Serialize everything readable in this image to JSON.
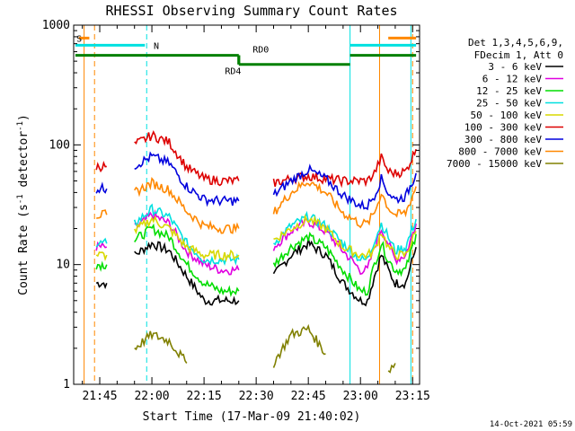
{
  "chart_data": {
    "type": "line",
    "title": "RHESSI Observing Summary Count Rates",
    "xlabel": "Start Time (17-Mar-09 21:40:02)",
    "ylabel_main": "Count Rate (s",
    "ylabel_sup1": "-1",
    "ylabel_mid": " detector",
    "ylabel_sup2": "-1",
    "ylabel_end": ")",
    "yscale": "log",
    "xlim": [
      -2.5,
      97
    ],
    "ylim": [
      1,
      1000
    ],
    "x_ticks": [
      {
        "value": 5,
        "label": "21:45"
      },
      {
        "value": 20,
        "label": "22:00"
      },
      {
        "value": 35,
        "label": "22:15"
      },
      {
        "value": 50,
        "label": "22:30"
      },
      {
        "value": 65,
        "label": "22:45"
      },
      {
        "value": 80,
        "label": "23:00"
      },
      {
        "value": 95,
        "label": "23:15"
      }
    ],
    "y_ticks": [
      {
        "value": 1,
        "label": "1"
      },
      {
        "value": 10,
        "label": "10"
      },
      {
        "value": 100,
        "label": "100"
      },
      {
        "value": 1000,
        "label": "1000"
      }
    ],
    "legend_header": [
      "Det 1,3,4,5,6,9,",
      "FDecim 1, Att 0"
    ],
    "x_minutes": [
      4,
      7,
      10,
      15,
      20,
      25,
      30,
      35,
      40,
      45,
      50,
      55,
      60,
      65,
      70,
      75,
      80,
      82,
      84,
      86,
      88,
      90,
      93,
      96
    ],
    "series": [
      {
        "name": "3 - 6 keV",
        "color": "#000000",
        "values": [
          7,
          7,
          null,
          12,
          15,
          13,
          8,
          5,
          5,
          5,
          null,
          8,
          12,
          15,
          12,
          7,
          5,
          5,
          8,
          12,
          9,
          7,
          7,
          14
        ]
      },
      {
        "name": "6 - 12 keV",
        "color": "#e000e0",
        "values": [
          14,
          14,
          null,
          20,
          26,
          22,
          13,
          10,
          9,
          9,
          null,
          14,
          19,
          23,
          19,
          13,
          9,
          9,
          14,
          20,
          15,
          11,
          12,
          22
        ]
      },
      {
        "name": "12 - 25 keV",
        "color": "#00dd00",
        "values": [
          10,
          10,
          null,
          16,
          20,
          17,
          10,
          7,
          6,
          6,
          null,
          10,
          14,
          17,
          14,
          9,
          6,
          6,
          10,
          15,
          11,
          9,
          9,
          18
        ]
      },
      {
        "name": "25 - 50 keV",
        "color": "#00e0e0",
        "values": [
          15,
          15,
          null,
          22,
          29,
          25,
          15,
          11,
          11,
          11,
          null,
          15,
          21,
          25,
          21,
          15,
          11,
          11,
          16,
          22,
          17,
          13,
          14,
          24
        ]
      },
      {
        "name": "50 - 100 keV",
        "color": "#d8d800",
        "values": [
          12,
          12,
          null,
          19,
          24,
          20,
          14,
          12,
          12,
          12,
          null,
          16,
          20,
          24,
          20,
          14,
          12,
          12,
          13,
          19,
          14,
          12,
          12,
          19
        ]
      },
      {
        "name": "100 - 300 keV",
        "color": "#dd0000",
        "values": [
          66,
          66,
          null,
          100,
          120,
          105,
          65,
          52,
          50,
          50,
          null,
          48,
          52,
          55,
          52,
          50,
          50,
          50,
          58,
          78,
          60,
          58,
          60,
          92
        ]
      },
      {
        "name": "300 - 800 keV",
        "color": "#0000dd",
        "values": [
          43,
          43,
          null,
          67,
          80,
          70,
          45,
          35,
          34,
          34,
          null,
          38,
          50,
          62,
          52,
          38,
          31,
          31,
          38,
          52,
          40,
          35,
          37,
          58
        ]
      },
      {
        "name": "800 - 7000 keV",
        "color": "#ff8800",
        "values": [
          26,
          26,
          null,
          40,
          48,
          42,
          28,
          21,
          20,
          20,
          null,
          27,
          40,
          50,
          40,
          27,
          22,
          22,
          27,
          40,
          30,
          26,
          27,
          45
        ]
      },
      {
        "name": "7000 - 15000 keV",
        "color": "#808000",
        "values": [
          null,
          null,
          null,
          2,
          2.6,
          2.3,
          1.5,
          null,
          null,
          null,
          null,
          1.5,
          2.6,
          2.9,
          1.8,
          null,
          null,
          null,
          null,
          null,
          1.3,
          1.5,
          null,
          null
        ]
      }
    ],
    "flags": [
      {
        "label": "RD0",
        "color": "#008000",
        "segments": [
          [
            -2,
            45
          ],
          [
            77,
            96
          ]
        ],
        "level": 560
      },
      {
        "label": "RD4",
        "color": "#008000",
        "segments": [
          [
            45,
            77
          ]
        ],
        "level": 470
      },
      {
        "label": "N",
        "color": "#00e0e0",
        "segments": [
          [
            -2,
            18
          ],
          [
            77,
            96
          ]
        ],
        "level": 680
      },
      {
        "label": "S",
        "color": "#ff8800",
        "segments": [
          [
            -1,
            2
          ],
          [
            88,
            96
          ]
        ],
        "level": 780
      }
    ],
    "vertical_markers": [
      {
        "x": 0.5,
        "color": "#ff8800",
        "style": "solid"
      },
      {
        "x": 3.5,
        "color": "#ff8800",
        "style": "dashed"
      },
      {
        "x": 18.5,
        "color": "#00e0e0",
        "style": "dashed"
      },
      {
        "x": 77,
        "color": "#00e0e0",
        "style": "solid"
      },
      {
        "x": 85.5,
        "color": "#ff8800",
        "style": "solid"
      },
      {
        "x": 94.5,
        "color": "#00e0e0",
        "style": "solid"
      },
      {
        "x": 95,
        "color": "#ff8800",
        "style": "dashed"
      }
    ],
    "grid": false,
    "legend_position": "right"
  },
  "footer_date": "14-Oct-2021 05:59"
}
